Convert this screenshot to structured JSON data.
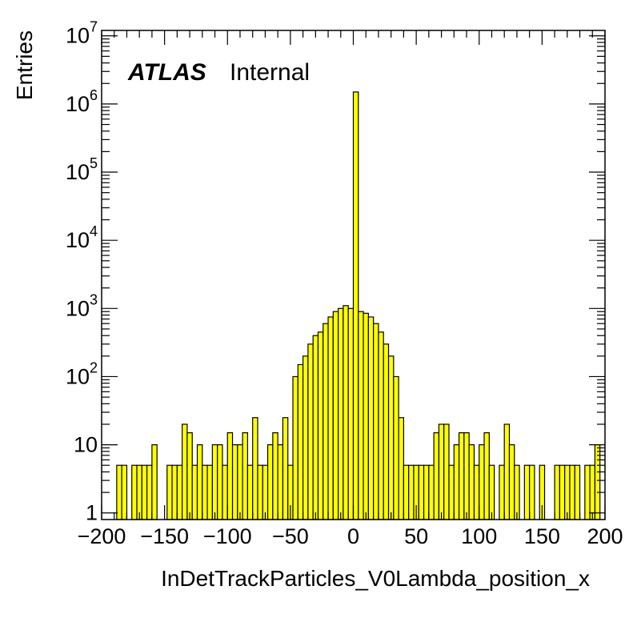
{
  "chart_data": {
    "type": "bar",
    "title": "",
    "xlabel": "InDetTrackParticles_V0Lambda_position_x",
    "ylabel": "Entries",
    "xlim": [
      -200,
      200
    ],
    "ylim": [
      0.8,
      12000000
    ],
    "y_scale": "log",
    "bin_width": 4,
    "annotation": {
      "atlas": "ATLAS",
      "status": "Internal"
    },
    "x_ticks": [
      "−200",
      "−150",
      "−100",
      "−50",
      "0",
      "50",
      "100",
      "150",
      "200"
    ],
    "x_tick_values": [
      -200,
      -150,
      -100,
      -50,
      0,
      50,
      100,
      150,
      200
    ],
    "y_ticks": [
      {
        "value": 1,
        "base": "1",
        "exp": ""
      },
      {
        "value": 10,
        "base": "10",
        "exp": ""
      },
      {
        "value": 100,
        "base": "10",
        "exp": "2"
      },
      {
        "value": 1000,
        "base": "10",
        "exp": "3"
      },
      {
        "value": 10000,
        "base": "10",
        "exp": "4"
      },
      {
        "value": 100000,
        "base": "10",
        "exp": "5"
      },
      {
        "value": 1000000,
        "base": "10",
        "exp": "6"
      },
      {
        "value": 10000000,
        "base": "10",
        "exp": "7"
      }
    ],
    "bin_low_edges": [
      -188,
      -184,
      -176,
      -172,
      -168,
      -164,
      -160,
      -148,
      -144,
      -140,
      -136,
      -132,
      -128,
      -124,
      -120,
      -116,
      -112,
      -108,
      -104,
      -100,
      -96,
      -92,
      -88,
      -84,
      -80,
      -76,
      -72,
      -68,
      -64,
      -60,
      -56,
      -52,
      -48,
      -44,
      -40,
      -36,
      -32,
      -28,
      -24,
      -20,
      -16,
      -12,
      -8,
      -4,
      0,
      4,
      8,
      12,
      16,
      20,
      24,
      28,
      32,
      36,
      40,
      44,
      48,
      52,
      56,
      60,
      64,
      68,
      72,
      76,
      80,
      84,
      88,
      92,
      96,
      100,
      104,
      108,
      116,
      120,
      124,
      128,
      136,
      140,
      148,
      160,
      164,
      168,
      172,
      176,
      184,
      188,
      192
    ],
    "values": [
      5,
      5,
      5,
      5,
      5,
      5,
      10,
      5,
      5,
      5,
      20,
      15,
      5,
      10,
      5,
      5,
      10,
      10,
      5,
      15,
      10,
      10,
      15,
      5,
      25,
      5,
      5,
      10,
      15,
      10,
      25,
      5,
      100,
      150,
      200,
      300,
      400,
      450,
      600,
      750,
      900,
      1000,
      1100,
      1000,
      1500000,
      900,
      850,
      750,
      600,
      450,
      300,
      200,
      100,
      25,
      5,
      5,
      5,
      5,
      5,
      5,
      15,
      20,
      20,
      5,
      10,
      15,
      15,
      10,
      5,
      10,
      15,
      5,
      5,
      20,
      10,
      5,
      5,
      5,
      5,
      5,
      5,
      5,
      5,
      5,
      5,
      5,
      10
    ]
  }
}
